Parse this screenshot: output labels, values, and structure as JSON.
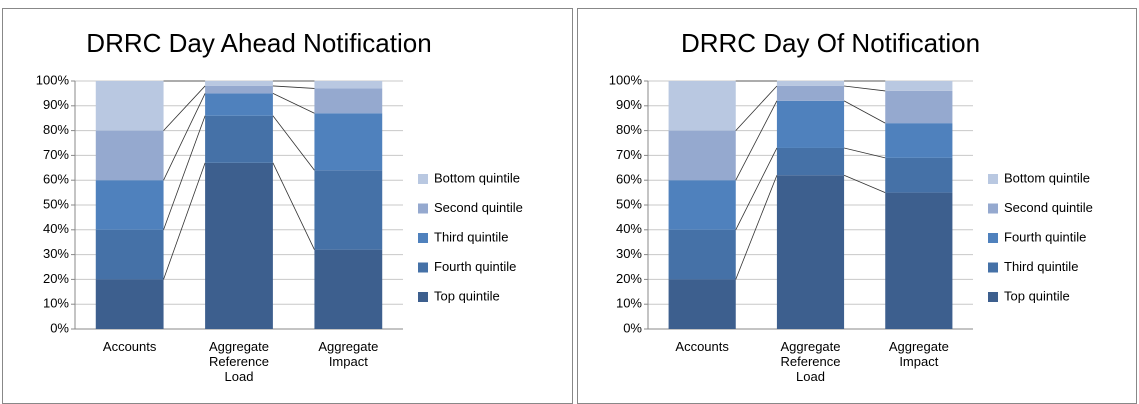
{
  "chart_data": [
    {
      "type": "bar",
      "title": "DRRC Day Ahead Notification",
      "categories": [
        "Accounts",
        "Aggregate Reference Load",
        "Aggregate Impact"
      ],
      "series": [
        {
          "name": "Top quintile",
          "color": "#3d5f8e",
          "values": [
            20,
            67,
            32
          ]
        },
        {
          "name": "Fourth quintile",
          "color": "#4571a7",
          "values": [
            20,
            19,
            32
          ]
        },
        {
          "name": "Third quintile",
          "color": "#4f81bd",
          "values": [
            20,
            9,
            23
          ]
        },
        {
          "name": "Second quintile",
          "color": "#95a9cf",
          "values": [
            20,
            3,
            10
          ]
        },
        {
          "name": "Bottom quintile",
          "color": "#b9c8e1",
          "values": [
            20,
            2,
            3
          ]
        }
      ],
      "ylim": [
        0,
        100
      ],
      "yticks": [
        {
          "value": 0,
          "label": "0%"
        },
        {
          "value": 10,
          "label": "10%"
        },
        {
          "value": 20,
          "label": "20%"
        },
        {
          "value": 30,
          "label": "30%"
        },
        {
          "value": 40,
          "label": "40%"
        },
        {
          "value": 50,
          "label": "50%"
        },
        {
          "value": 60,
          "label": "60%"
        },
        {
          "value": 70,
          "label": "70%"
        },
        {
          "value": 80,
          "label": "80%"
        },
        {
          "value": 90,
          "label": "90%"
        },
        {
          "value": 100,
          "label": "100%"
        }
      ],
      "stacked": true,
      "grid": true,
      "legend": "right"
    },
    {
      "type": "bar",
      "title": "DRRC Day Of Notification",
      "categories": [
        "Accounts",
        "Aggregate Reference Load",
        "Aggregate Impact"
      ],
      "series": [
        {
          "name": "Top quintile",
          "color": "#3d5f8e",
          "values": [
            20,
            62,
            55
          ]
        },
        {
          "name": "Third quintile",
          "color": "#4571a7",
          "values": [
            20,
            11,
            14
          ]
        },
        {
          "name": "Fourth quintile",
          "color": "#4f81bd",
          "values": [
            20,
            19,
            14
          ]
        },
        {
          "name": "Second quintile",
          "color": "#95a9cf",
          "values": [
            20,
            6,
            13
          ]
        },
        {
          "name": "Bottom quintile",
          "color": "#b9c8e1",
          "values": [
            20,
            2,
            4
          ]
        }
      ],
      "ylim": [
        0,
        100
      ],
      "yticks": [
        {
          "value": 0,
          "label": "0%"
        },
        {
          "value": 10,
          "label": "10%"
        },
        {
          "value": 20,
          "label": "20%"
        },
        {
          "value": 30,
          "label": "30%"
        },
        {
          "value": 40,
          "label": "40%"
        },
        {
          "value": 50,
          "label": "50%"
        },
        {
          "value": 60,
          "label": "60%"
        },
        {
          "value": 70,
          "label": "70%"
        },
        {
          "value": 80,
          "label": "80%"
        },
        {
          "value": 90,
          "label": "90%"
        },
        {
          "value": 100,
          "label": "100%"
        }
      ],
      "stacked": true,
      "grid": true,
      "legend": "right"
    }
  ]
}
